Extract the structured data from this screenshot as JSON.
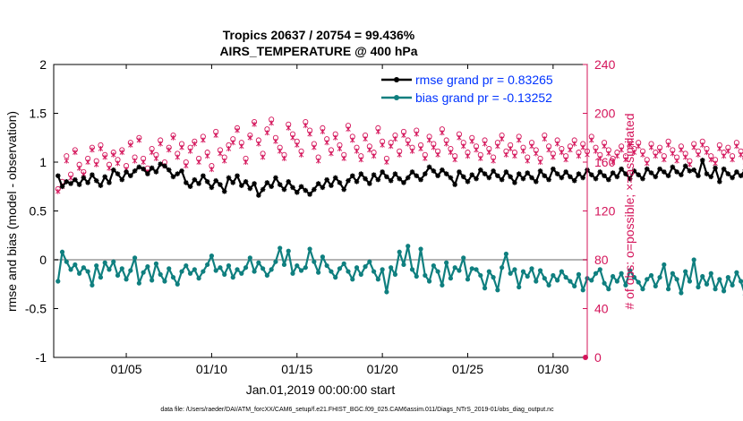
{
  "chart_data": {
    "type": "line",
    "title": [
      "Tropics 20637 / 20754 = 99.436%",
      "AIRS_TEMPERATURE @ 400 hPa"
    ],
    "xlabel": "Jan.01,2019 00:00:00 start",
    "ylabel": "rmse and bias (model - observation)",
    "y2label": "# of obs: o=possible; ×=assimilated",
    "footer": "data file: /Users/raeder/DAI/ATM_forcXX/CAM6_setup/f.e21.FHIST_BGC.f09_025.CAM6assim.011/Diags_NTrS_2019-01/obs_diag_output.nc",
    "xlim": [
      0.75,
      32.0
    ],
    "ylim": [
      -1,
      2
    ],
    "y2lim": [
      0,
      240
    ],
    "x_ticks": [
      5,
      10,
      15,
      20,
      25,
      30
    ],
    "x_tick_labels": [
      "01/05",
      "01/10",
      "01/15",
      "01/20",
      "01/25",
      "01/30"
    ],
    "y_ticks": [
      -1,
      -0.5,
      0,
      0.5,
      1,
      1.5,
      2
    ],
    "y_tick_labels": [
      "-1",
      "-0.5",
      "0",
      "0.5",
      "1",
      "1.5",
      "2"
    ],
    "y2_ticks": [
      0,
      40,
      80,
      120,
      160,
      200,
      240
    ],
    "y2_tick_labels": [
      "0",
      "40",
      "80",
      "120",
      "160",
      "200",
      "240"
    ],
    "legend_position": "top-right",
    "colors": {
      "rmse": "#000000",
      "bias": "#0f7f7f",
      "obs": "#d4145a",
      "zero_line": "#b3b3b3",
      "legend_text": "#0033ff",
      "axis": "#000000"
    },
    "series": [
      {
        "name": "rmse grand pr = 0.83265",
        "start_day": 1.0,
        "step_days": 0.25,
        "values": [
          0.86,
          0.75,
          0.8,
          0.78,
          0.82,
          0.77,
          0.84,
          0.79,
          0.87,
          0.81,
          0.76,
          0.85,
          0.79,
          0.92,
          0.88,
          0.82,
          0.9,
          0.86,
          0.91,
          0.95,
          0.93,
          0.88,
          0.94,
          0.9,
          0.98,
          0.96,
          0.92,
          0.85,
          0.88,
          0.91,
          0.79,
          0.75,
          0.82,
          0.78,
          0.86,
          0.8,
          0.74,
          0.81,
          0.77,
          0.7,
          0.84,
          0.79,
          0.86,
          0.76,
          0.8,
          0.73,
          0.78,
          0.66,
          0.72,
          0.79,
          0.75,
          0.84,
          0.77,
          0.72,
          0.8,
          0.74,
          0.69,
          0.75,
          0.71,
          0.67,
          0.72,
          0.78,
          0.74,
          0.82,
          0.76,
          0.84,
          0.79,
          0.72,
          0.81,
          0.86,
          0.8,
          0.88,
          0.83,
          0.78,
          0.87,
          0.82,
          0.9,
          0.85,
          0.81,
          0.88,
          0.83,
          0.79,
          0.84,
          0.9,
          0.86,
          0.82,
          0.88,
          0.95,
          0.91,
          0.86,
          0.92,
          0.88,
          0.84,
          0.77,
          0.9,
          0.85,
          0.8,
          0.87,
          0.83,
          0.92,
          0.88,
          0.84,
          0.91,
          0.86,
          0.82,
          0.9,
          0.85,
          0.79,
          0.88,
          0.83,
          0.89,
          0.84,
          0.8,
          0.91,
          0.86,
          0.82,
          0.93,
          0.88,
          0.84,
          0.9,
          0.85,
          0.81,
          0.88,
          0.84,
          0.92,
          0.87,
          0.83,
          0.9,
          0.86,
          0.82,
          0.89,
          0.85,
          0.93,
          0.88,
          0.83,
          0.91,
          0.87,
          0.83,
          0.93,
          0.89,
          0.85,
          0.93,
          0.9,
          0.86,
          0.95,
          0.9,
          0.87,
          0.96,
          0.91,
          0.92,
          0.86,
          1.02,
          0.88,
          0.85,
          0.94,
          0.8,
          0.93,
          0.88,
          0.84,
          0.9,
          0.86,
          0.92,
          0.87,
          0.9,
          0.85,
          0.91,
          0.88,
          0.93,
          0.86,
          0.95,
          0.89,
          0.84,
          0.92,
          0.88,
          0.96,
          0.9,
          0.98,
          0.93,
          0.87,
          0.95,
          0.9,
          0.97,
          0.93,
          0.99,
          1.03,
          1.01,
          0.96,
          0.93,
          0.9,
          0.95,
          0.92,
          0.88
        ]
      },
      {
        "name": "bias grand pr = -0.13252",
        "start_day": 1.0,
        "step_days": 0.25,
        "values": [
          -0.22,
          0.08,
          -0.02,
          -0.1,
          -0.05,
          -0.14,
          -0.08,
          -0.12,
          -0.26,
          -0.06,
          -0.18,
          -0.03,
          -0.1,
          -0.02,
          -0.16,
          -0.09,
          -0.2,
          -0.11,
          0.02,
          -0.24,
          -0.13,
          -0.07,
          -0.21,
          -0.04,
          -0.15,
          -0.22,
          -0.09,
          -0.18,
          -0.25,
          -0.12,
          -0.06,
          -0.14,
          -0.1,
          -0.19,
          -0.12,
          -0.05,
          0.04,
          -0.11,
          -0.08,
          -0.15,
          -0.06,
          -0.18,
          -0.1,
          -0.14,
          -0.08,
          0.02,
          -0.12,
          -0.03,
          -0.09,
          -0.16,
          -0.1,
          -0.02,
          0.12,
          -0.05,
          0.09,
          -0.14,
          -0.06,
          -0.11,
          -0.08,
          0.11,
          -0.02,
          -0.13,
          0.03,
          -0.06,
          -0.12,
          -0.18,
          -0.09,
          -0.04,
          -0.12,
          -0.2,
          -0.08,
          -0.15,
          -0.07,
          -0.02,
          -0.12,
          -0.2,
          -0.1,
          -0.33,
          -0.08,
          -0.15,
          0.08,
          -0.05,
          0.14,
          -0.1,
          -0.17,
          0.11,
          -0.16,
          -0.22,
          -0.06,
          -0.12,
          -0.26,
          -0.03,
          -0.19,
          -0.08,
          -0.11,
          0.02,
          -0.2,
          -0.09,
          -0.1,
          -0.16,
          -0.29,
          -0.12,
          -0.18,
          -0.31,
          -0.08,
          0.06,
          -0.14,
          -0.1,
          -0.28,
          -0.12,
          -0.17,
          -0.09,
          -0.22,
          -0.11,
          -0.19,
          -0.26,
          -0.16,
          -0.21,
          -0.12,
          -0.18,
          -0.22,
          -0.27,
          -0.15,
          -0.31,
          -0.19,
          -0.21,
          -0.14,
          -0.1,
          -0.24,
          -0.3,
          -0.17,
          -0.22,
          -0.14,
          -0.26,
          -0.11,
          -0.18,
          -0.23,
          -0.3,
          -0.2,
          -0.16,
          -0.27,
          -0.18,
          -0.05,
          -0.3,
          -0.14,
          -0.2,
          -0.34,
          -0.12,
          -0.22,
          0.0,
          -0.28,
          -0.17,
          -0.25,
          -0.14,
          -0.3,
          -0.2,
          -0.32,
          -0.18,
          -0.26,
          -0.13,
          -0.22,
          -0.36,
          -0.15,
          -0.25,
          -0.11,
          -0.29,
          -0.21,
          -0.09,
          -0.3,
          -0.2,
          -0.15,
          -0.05,
          -0.26,
          -0.12,
          -0.17,
          -0.03,
          -0.3,
          -0.2,
          -0.15,
          -0.24,
          -0.18,
          -0.29,
          -0.21,
          -0.3,
          -0.24,
          -0.33,
          -0.26,
          -0.2,
          -0.36,
          -0.27,
          -0.22,
          -0.25,
          -0.2
        ]
      },
      {
        "name": "obs possible",
        "marker": "o",
        "axis": "right",
        "start_day": 1.0,
        "step_days": 0.25,
        "values": [
          138,
          144,
          165,
          150,
          170,
          158,
          152,
          163,
          172,
          161,
          174,
          166,
          158,
          168,
          162,
          170,
          157,
          176,
          164,
          180,
          163,
          155,
          171,
          166,
          178,
          160,
          172,
          182,
          167,
          175,
          160,
          172,
          177,
          163,
          181,
          168,
          157,
          185,
          170,
          164,
          174,
          179,
          188,
          176,
          163,
          182,
          193,
          178,
          167,
          187,
          195,
          180,
          172,
          166,
          191,
          183,
          177,
          169,
          193,
          186,
          175,
          164,
          188,
          179,
          170,
          183,
          174,
          166,
          190,
          181,
          172,
          165,
          182,
          173,
          168,
          188,
          177,
          163,
          176,
          182,
          169,
          185,
          178,
          172,
          186,
          174,
          166,
          181,
          175,
          169,
          187,
          178,
          171,
          165,
          183,
          176,
          168,
          180,
          173,
          166,
          178,
          171,
          164,
          176,
          182,
          169,
          174,
          168,
          181,
          172,
          164,
          176,
          170,
          163,
          182,
          173,
          167,
          178,
          171,
          165,
          173,
          178,
          168,
          175,
          169,
          181,
          172,
          166,
          176,
          170,
          163,
          168,
          173,
          165,
          177,
          171,
          176,
          169,
          162,
          175,
          168,
          172,
          165,
          177,
          170,
          164,
          173,
          167,
          161,
          175,
          169,
          177,
          171,
          165,
          162,
          174,
          168,
          172,
          165,
          176,
          169,
          163,
          172,
          166,
          171,
          164,
          178,
          170,
          166,
          173,
          167,
          163,
          171,
          166,
          170,
          165,
          172,
          168,
          160,
          164,
          171,
          167,
          174,
          169,
          176,
          172,
          168,
          171,
          166,
          160
        ]
      },
      {
        "name": "obs assimilated",
        "marker": "x",
        "axis": "right",
        "start_day": 1.0,
        "step_days": 0.25,
        "values": [
          136,
          140,
          161,
          147,
          168,
          155,
          150,
          160,
          170,
          158,
          171,
          164,
          155,
          166,
          159,
          168,
          154,
          174,
          161,
          178,
          160,
          152,
          168,
          163,
          175,
          157,
          170,
          180,
          164,
          172,
          157,
          169,
          175,
          160,
          178,
          165,
          154,
          182,
          167,
          161,
          171,
          176,
          186,
          173,
          160,
          180,
          191,
          175,
          164,
          184,
          192,
          177,
          169,
          163,
          188,
          180,
          174,
          166,
          190,
          183,
          172,
          161,
          185,
          176,
          167,
          180,
          171,
          163,
          187,
          178,
          169,
          162,
          179,
          170,
          165,
          185,
          174,
          160,
          173,
          179,
          166,
          182,
          175,
          169,
          183,
          171,
          163,
          178,
          172,
          166,
          184,
          175,
          168,
          162,
          180,
          173,
          165,
          177,
          170,
          163,
          175,
          168,
          161,
          173,
          179,
          166,
          171,
          165,
          178,
          169,
          161,
          173,
          167,
          160,
          179,
          170,
          164,
          175,
          168,
          162,
          170,
          175,
          165,
          172,
          166,
          178,
          169,
          163,
          173,
          167,
          160,
          165,
          170,
          162,
          174,
          168,
          173,
          166,
          159,
          172,
          165,
          169,
          162,
          174,
          167,
          161,
          170,
          164,
          158,
          172,
          166,
          174,
          168,
          162,
          159,
          171,
          165,
          169,
          162,
          173,
          166,
          160,
          169,
          163,
          168,
          161,
          175,
          167,
          163,
          170,
          164,
          160,
          168,
          163,
          167,
          162,
          169,
          165,
          157,
          161,
          168,
          164,
          171,
          166,
          173,
          169,
          165,
          168,
          163,
          157
        ]
      }
    ]
  }
}
